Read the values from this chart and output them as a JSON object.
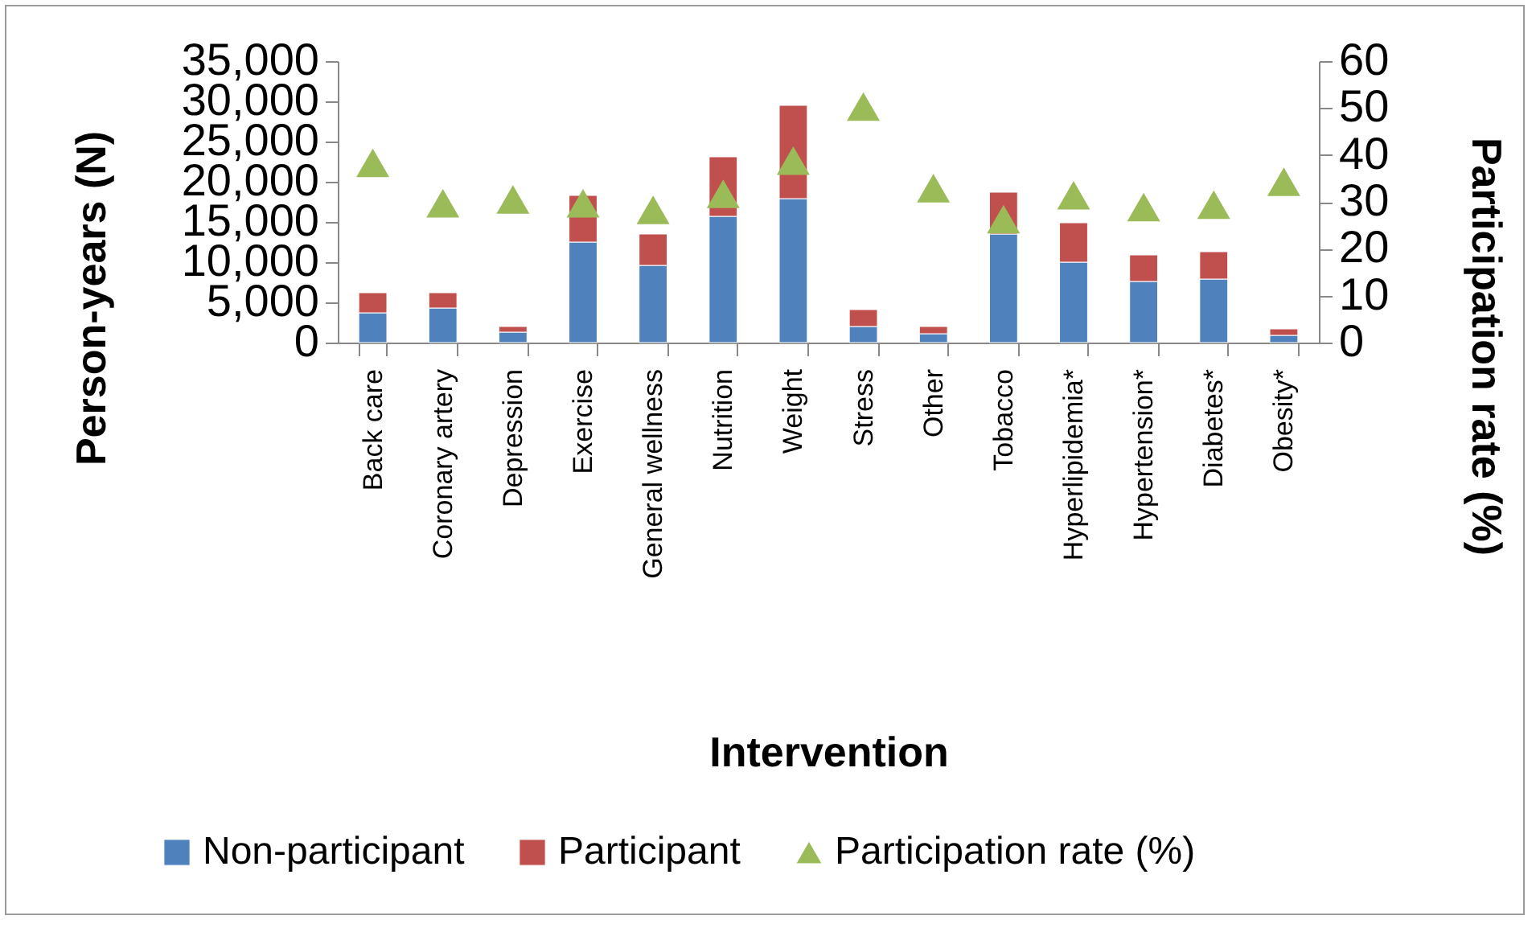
{
  "chart_data": {
    "type": "bar",
    "stacked": true,
    "xlabel": "Intervention",
    "ylabel": "Person-years (N)",
    "y2label": "Participation rate (%)",
    "categories": [
      "Back care",
      "Coronary artery",
      "Depression",
      "Exercise",
      "General wellness",
      "Nutrition",
      "Weight",
      "Stress",
      "Other",
      "Tobacco",
      "Hyperlipidemia*",
      "Hypertension*",
      "Diabetes*",
      "Obesity*"
    ],
    "series": [
      {
        "name": "Non-participant",
        "color": "#4f81bd",
        "values": [
          3700,
          4300,
          1300,
          12500,
          9600,
          15700,
          17900,
          2000,
          1100,
          13500,
          10000,
          7600,
          7900,
          900
        ]
      },
      {
        "name": "Participant",
        "color": "#c0504d",
        "values": [
          2500,
          1900,
          700,
          5800,
          3900,
          7400,
          11600,
          2100,
          900,
          5200,
          4900,
          3300,
          3400,
          800
        ]
      },
      {
        "name": "Participation rate (%)",
        "type": "scatter",
        "axis": "y2",
        "marker": "triangle",
        "color": "#9bbb59",
        "values": [
          38.3,
          29.7,
          30.5,
          29.7,
          28.3,
          31.7,
          38.8,
          50.3,
          32.9,
          26.3,
          31.4,
          28.9,
          29.4,
          34.3
        ]
      }
    ],
    "ylim": [
      0,
      35000
    ],
    "yticks": [
      0,
      {
        "value": 5000,
        "label": "5,000"
      },
      {
        "value": 10000,
        "label": "10,000"
      },
      {
        "value": 15000,
        "label": "15,000"
      },
      {
        "value": 20000,
        "label": "20,000"
      },
      {
        "value": 25000,
        "label": "25,000"
      },
      {
        "value": 30000,
        "label": "30,000"
      },
      {
        "value": 35000,
        "label": "35,000"
      }
    ],
    "y2lim": [
      0,
      60
    ],
    "y2ticks": [
      0,
      10,
      20,
      30,
      40,
      50,
      60
    ],
    "legend": "bottom"
  }
}
